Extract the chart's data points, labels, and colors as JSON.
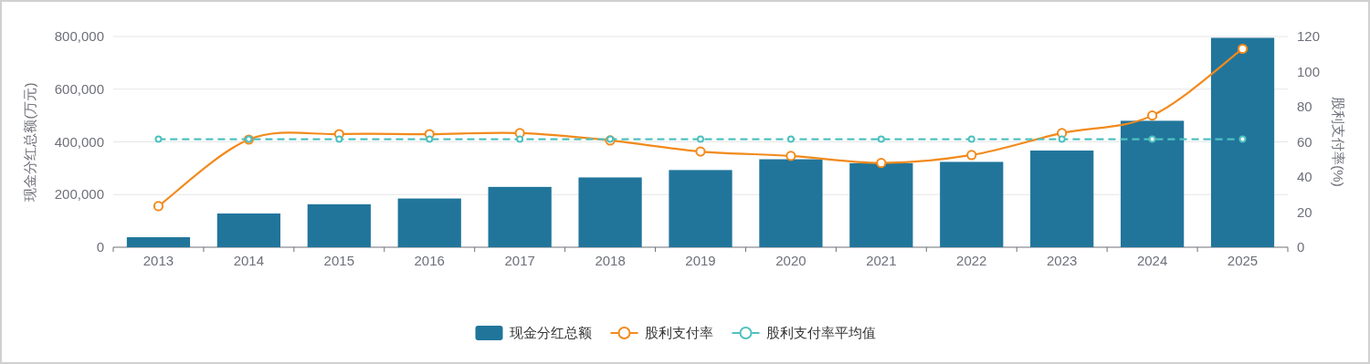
{
  "chart_data": {
    "type": "bar",
    "categories": [
      "2013",
      "2014",
      "2015",
      "2016",
      "2017",
      "2018",
      "2019",
      "2020",
      "2021",
      "2022",
      "2023",
      "2024",
      "2025"
    ],
    "series": [
      {
        "name": "现金分红总额",
        "color": "#21759b",
        "values": [
          38000,
          128000,
          163000,
          185000,
          229000,
          265000,
          293000,
          334000,
          319000,
          324000,
          367000,
          480000,
          795000
        ]
      },
      {
        "name": "股利支付率",
        "type": "line",
        "axis": "y2",
        "color": "#f28a1c",
        "marker": "circle",
        "line_style": "solid",
        "values": [
          23.4,
          61.3,
          64.4,
          64.4,
          65,
          60.8,
          54.5,
          52,
          48,
          52.5,
          65,
          75,
          113
        ]
      },
      {
        "name": "股利支付率平均值",
        "type": "line",
        "axis": "y2",
        "color": "#4fc1c0",
        "marker": "circle",
        "line_style": "dashed",
        "values": [
          61.5,
          61.5,
          61.5,
          61.5,
          61.5,
          61.5,
          61.5,
          61.5,
          61.5,
          61.5,
          61.5,
          61.5,
          61.5
        ]
      }
    ],
    "ylabel": "现金分红总额(万元)",
    "y2label": "股利支付率(%)",
    "ylim": [
      0,
      800000
    ],
    "yticks": [
      0,
      {
        "value": 200000,
        "label": "200,000"
      },
      {
        "value": 400000,
        "label": "400,000"
      },
      {
        "value": 600000,
        "label": "600,000"
      },
      {
        "value": 800000,
        "label": "800,000"
      }
    ],
    "y2lim": [
      0,
      120
    ],
    "y2ticks": [
      0,
      20,
      40,
      60,
      80,
      100,
      120
    ],
    "grid": "y",
    "legend": "bottom"
  }
}
